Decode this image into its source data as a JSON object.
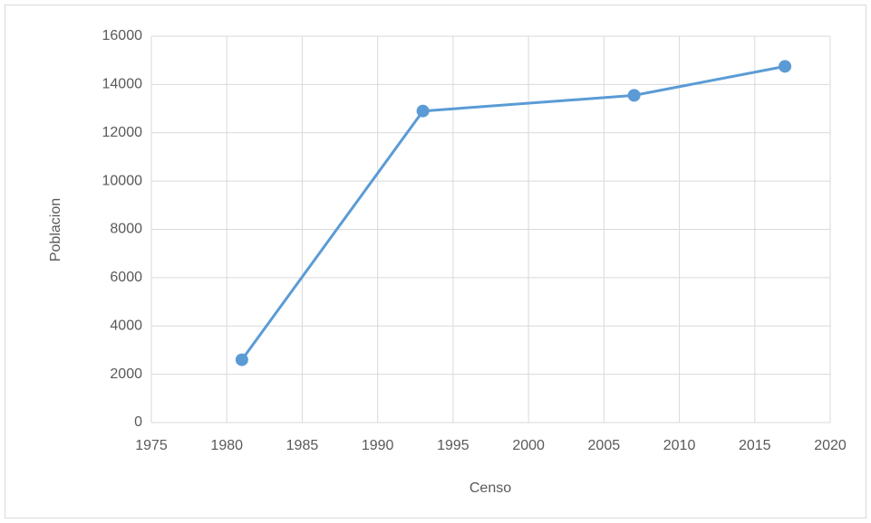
{
  "chart_data": {
    "type": "line",
    "x": [
      1981,
      1993,
      2007,
      2017
    ],
    "values": [
      2600,
      12900,
      13550,
      14750
    ],
    "color": "#5b9bd5",
    "xlabel": "Censo",
    "ylabel": "Poblacion",
    "xlim": [
      1975,
      2020
    ],
    "xticks": [
      1975,
      1980,
      1985,
      1990,
      1995,
      2000,
      2005,
      2010,
      2015,
      2020
    ],
    "ylim": [
      0,
      16000
    ],
    "yticks": [
      0,
      2000,
      4000,
      6000,
      8000,
      10000,
      12000,
      14000,
      16000
    ],
    "grid": true
  }
}
